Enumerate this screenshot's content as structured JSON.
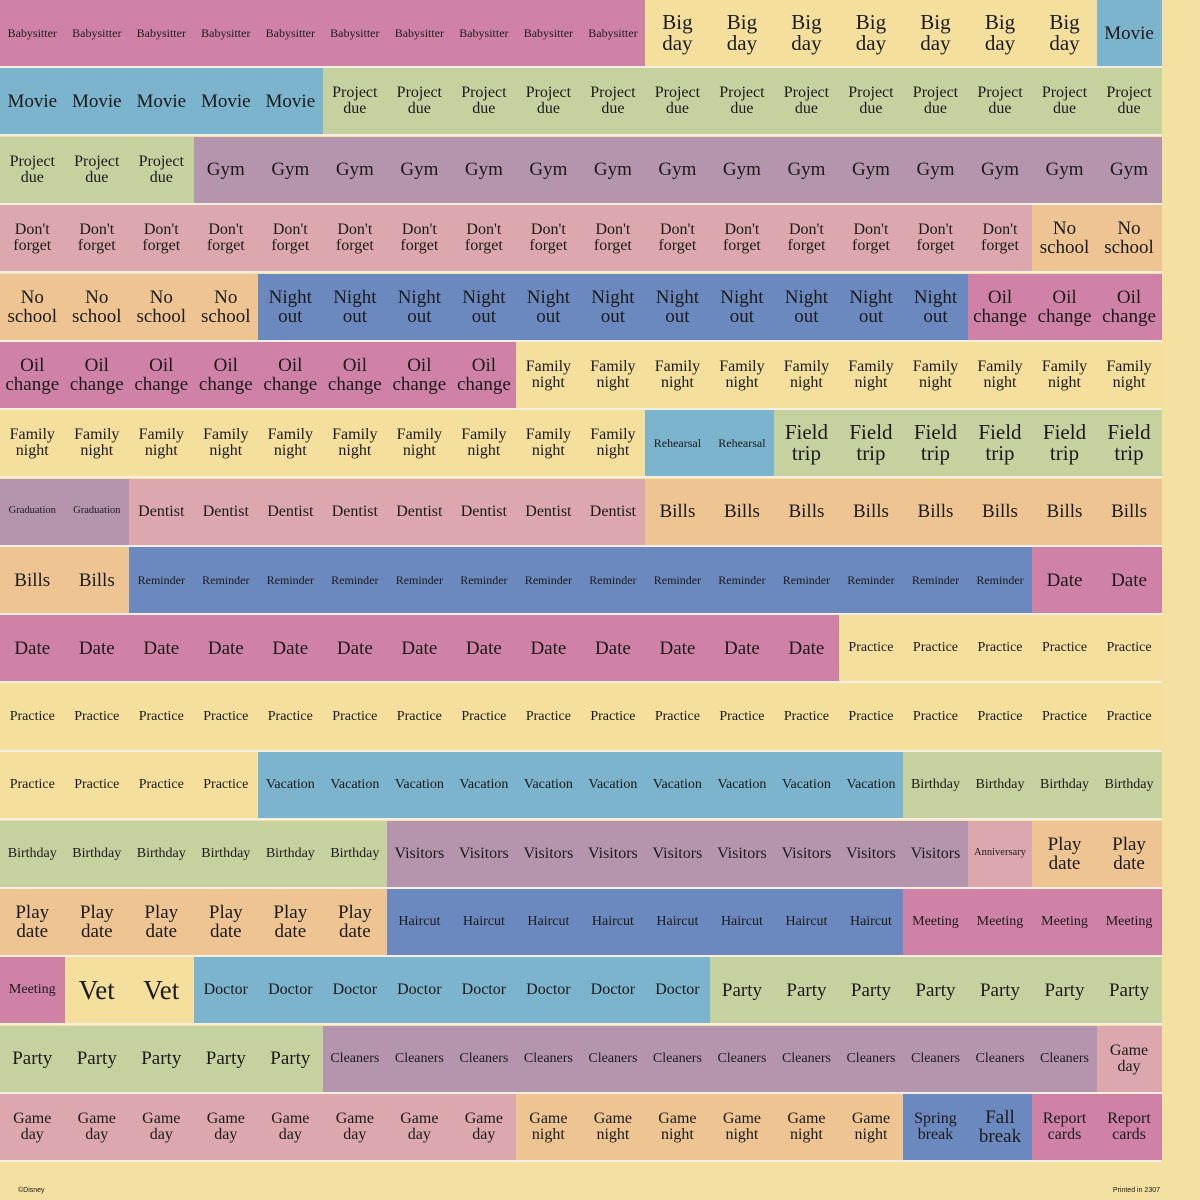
{
  "colors": {
    "pink": "#d082a6",
    "yellow": "#f4df9c",
    "blue": "#7bb4cc",
    "green": "#c6d1a0",
    "purple": "#b595ae",
    "rose": "#dda8ad",
    "orange": "#eec592",
    "indigo": "#6b89bf"
  },
  "rows": [
    [
      [
        "pink",
        "Babysitter",
        10
      ],
      [
        "yellow",
        "Big day",
        7
      ],
      [
        "blue",
        "Movie",
        1
      ]
    ],
    [
      [
        "blue",
        "Movie",
        5
      ],
      [
        "green",
        "Project due",
        13
      ]
    ],
    [
      [
        "green",
        "Project due",
        3
      ],
      [
        "purple",
        "Gym",
        15
      ]
    ],
    [
      [
        "rose",
        "Don't forget",
        16
      ],
      [
        "orange",
        "No school",
        2
      ]
    ],
    [
      [
        "orange",
        "No school",
        4
      ],
      [
        "indigo",
        "Night out",
        11
      ],
      [
        "pink",
        "Oil change",
        3
      ]
    ],
    [
      [
        "pink",
        "Oil change",
        8
      ],
      [
        "yellow",
        "Family night",
        10
      ]
    ],
    [
      [
        "yellow",
        "Family night",
        10
      ],
      [
        "blue",
        "Rehearsal",
        2
      ],
      [
        "green",
        "Field trip",
        6
      ]
    ],
    [
      [
        "purple",
        "Graduation",
        2
      ],
      [
        "rose",
        "Dentist",
        8
      ],
      [
        "orange",
        "Bills",
        8
      ]
    ],
    [
      [
        "orange",
        "Bills",
        2
      ],
      [
        "indigo",
        "Reminder",
        14
      ],
      [
        "pink",
        "Date",
        2
      ]
    ],
    [
      [
        "pink",
        "Date",
        13
      ],
      [
        "yellow",
        "Practice",
        5
      ]
    ],
    [
      [
        "yellow",
        "Practice",
        18
      ]
    ],
    [
      [
        "yellow",
        "Practice",
        4
      ],
      [
        "blue",
        "Vacation",
        10
      ],
      [
        "green",
        "Birthday",
        4
      ]
    ],
    [
      [
        "green",
        "Birthday",
        6
      ],
      [
        "purple",
        "Visitors",
        9
      ],
      [
        "rose",
        "Anniversary",
        1
      ],
      [
        "orange",
        "Play date",
        2
      ]
    ],
    [
      [
        "orange",
        "Play date",
        6
      ],
      [
        "indigo",
        "Haircut",
        8
      ],
      [
        "pink",
        "Meeting",
        4
      ]
    ],
    [
      [
        "pink",
        "Meeting",
        1
      ],
      [
        "yellow",
        "Vet",
        2
      ],
      [
        "blue",
        "Doctor",
        8
      ],
      [
        "green",
        "Party",
        7
      ]
    ],
    [
      [
        "green",
        "Party",
        5
      ],
      [
        "purple",
        "Cleaners",
        12
      ],
      [
        "rose",
        "Game day",
        1
      ]
    ],
    [
      [
        "rose",
        "Game day",
        8
      ],
      [
        "orange",
        "Game night",
        6
      ],
      [
        "indigo",
        "Spring break",
        1
      ],
      [
        "indigo",
        "Fall break",
        1
      ],
      [
        "pink",
        "Report cards",
        2
      ]
    ]
  ],
  "footer": {
    "left": "©Disney",
    "right": "Printed in 2307"
  }
}
